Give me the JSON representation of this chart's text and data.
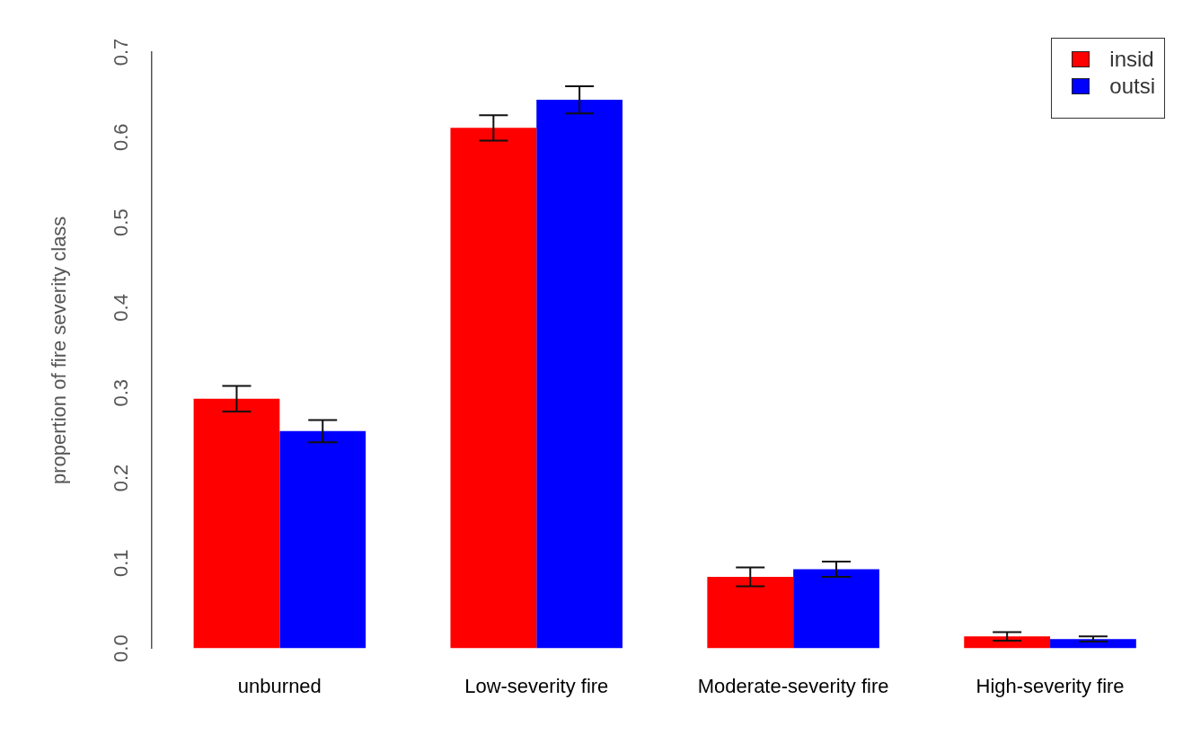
{
  "chart_data": {
    "type": "bar",
    "ylabel": "propertion of fire severity class",
    "categories": [
      "unburned",
      "Low-severity fire",
      "Moderate-severity fire",
      "High-severity fire"
    ],
    "series": [
      {
        "name": "insid",
        "color": "#ff0000",
        "values": [
          0.293,
          0.611,
          0.084,
          0.014
        ],
        "errors": [
          0.015,
          0.015,
          0.011,
          0.005
        ]
      },
      {
        "name": "outsi",
        "color": "#0000ff",
        "values": [
          0.255,
          0.644,
          0.093,
          0.011
        ],
        "errors": [
          0.013,
          0.016,
          0.009,
          0.003
        ]
      }
    ],
    "ylim": [
      0,
      0.7
    ],
    "yticks": [
      {
        "value": 0,
        "label": "0.0"
      },
      0.1,
      0.2,
      0.3,
      0.4,
      0.5,
      0.6,
      0.7
    ],
    "grid": false,
    "legend": "top right"
  }
}
